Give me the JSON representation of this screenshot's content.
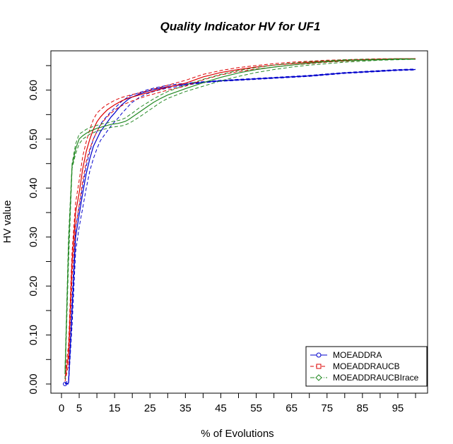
{
  "chart_data": {
    "type": "line",
    "title": "Quality Indicator HV for UF1",
    "xlabel": "% of Evolutions",
    "ylabel": "HV value",
    "xlim": [
      0,
      100
    ],
    "ylim": [
      0,
      0.66
    ],
    "x_ticks": [
      0,
      5,
      10,
      15,
      20,
      25,
      30,
      35,
      40,
      45,
      50,
      55,
      60,
      65,
      70,
      75,
      80,
      85,
      90,
      95,
      100
    ],
    "x_tick_labels": [
      "0",
      "5",
      "",
      "15",
      "",
      "25",
      "",
      "35",
      "",
      "45",
      "",
      "55",
      "",
      "65",
      "",
      "75",
      "",
      "85",
      "",
      "95",
      ""
    ],
    "y_ticks": [
      0,
      0.05,
      0.1,
      0.15,
      0.2,
      0.25,
      0.3,
      0.35,
      0.4,
      0.45,
      0.5,
      0.55,
      0.6,
      0.65
    ],
    "y_tick_labels": [
      "0.00",
      "",
      "0.10",
      "",
      "0.20",
      "",
      "0.30",
      "",
      "0.40",
      "",
      "0.50",
      "",
      "0.60",
      ""
    ],
    "legend_position": "bottom-right",
    "x": [
      1,
      2,
      3,
      4,
      5,
      6,
      7,
      8,
      9,
      10,
      11,
      12,
      13,
      14,
      15,
      16,
      17,
      18,
      19,
      20,
      22,
      24,
      26,
      28,
      30,
      35,
      40,
      45,
      50,
      55,
      60,
      65,
      70,
      75,
      80,
      85,
      90,
      95,
      100
    ],
    "series": [
      {
        "name": "MOEADDRA",
        "color": "#0000cc",
        "marker": "circle",
        "linestyle": "solid",
        "values": [
          0.0,
          0.002,
          0.15,
          0.3,
          0.345,
          0.39,
          0.43,
          0.46,
          0.485,
          0.5,
          0.515,
          0.525,
          0.535,
          0.545,
          0.553,
          0.562,
          0.57,
          0.576,
          0.582,
          0.586,
          0.592,
          0.597,
          0.601,
          0.604,
          0.607,
          0.612,
          0.616,
          0.619,
          0.621,
          0.623,
          0.625,
          0.627,
          0.629,
          0.632,
          0.635,
          0.637,
          0.639,
          0.641,
          0.642
        ],
        "upper": [
          0.0,
          0.01,
          0.17,
          0.32,
          0.36,
          0.405,
          0.445,
          0.475,
          0.5,
          0.515,
          0.53,
          0.54,
          0.548,
          0.556,
          0.563,
          0.57,
          0.577,
          0.582,
          0.587,
          0.59,
          0.595,
          0.6,
          0.604,
          0.607,
          0.61,
          0.614,
          0.617,
          0.62,
          0.622,
          0.624,
          0.626,
          0.628,
          0.63,
          0.633,
          0.636,
          0.638,
          0.64,
          0.642,
          0.643
        ],
        "lower": [
          0.0,
          0.0,
          0.12,
          0.27,
          0.32,
          0.36,
          0.4,
          0.435,
          0.46,
          0.48,
          0.497,
          0.507,
          0.517,
          0.527,
          0.535,
          0.543,
          0.552,
          0.56,
          0.568,
          0.575,
          0.585,
          0.592,
          0.597,
          0.601,
          0.604,
          0.61,
          0.615,
          0.618,
          0.62,
          0.622,
          0.624,
          0.626,
          0.628,
          0.631,
          0.634,
          0.636,
          0.638,
          0.64,
          0.641
        ]
      },
      {
        "name": "MOEADDRAUCB",
        "color": "#dd0000",
        "marker": "square",
        "linestyle": "dashed",
        "values": [
          0.01,
          0.06,
          0.25,
          0.35,
          0.39,
          0.44,
          0.475,
          0.5,
          0.52,
          0.535,
          0.545,
          0.553,
          0.56,
          0.565,
          0.57,
          0.574,
          0.578,
          0.581,
          0.584,
          0.586,
          0.59,
          0.594,
          0.598,
          0.602,
          0.606,
          0.614,
          0.627,
          0.636,
          0.642,
          0.647,
          0.651,
          0.654,
          0.657,
          0.659,
          0.661,
          0.662,
          0.663,
          0.664,
          0.664
        ],
        "upper": [
          0.02,
          0.08,
          0.27,
          0.37,
          0.415,
          0.465,
          0.495,
          0.52,
          0.54,
          0.553,
          0.56,
          0.566,
          0.571,
          0.575,
          0.579,
          0.582,
          0.585,
          0.587,
          0.589,
          0.591,
          0.594,
          0.598,
          0.602,
          0.606,
          0.61,
          0.62,
          0.632,
          0.64,
          0.646,
          0.65,
          0.654,
          0.657,
          0.659,
          0.661,
          0.662,
          0.663,
          0.664,
          0.664,
          0.664
        ],
        "lower": [
          0.005,
          0.04,
          0.22,
          0.32,
          0.365,
          0.415,
          0.455,
          0.48,
          0.5,
          0.515,
          0.528,
          0.538,
          0.546,
          0.553,
          0.559,
          0.564,
          0.568,
          0.572,
          0.575,
          0.578,
          0.583,
          0.588,
          0.592,
          0.596,
          0.6,
          0.608,
          0.621,
          0.631,
          0.638,
          0.643,
          0.647,
          0.651,
          0.654,
          0.657,
          0.659,
          0.661,
          0.662,
          0.663,
          0.664
        ]
      },
      {
        "name": "MOEADDRAUCBIrace",
        "color": "#228822",
        "marker": "diamond",
        "linestyle": "dotdash",
        "values": [
          0.02,
          0.28,
          0.445,
          0.48,
          0.5,
          0.507,
          0.512,
          0.516,
          0.519,
          0.522,
          0.524,
          0.526,
          0.528,
          0.53,
          0.531,
          0.532,
          0.534,
          0.536,
          0.54,
          0.545,
          0.555,
          0.565,
          0.575,
          0.583,
          0.59,
          0.603,
          0.615,
          0.626,
          0.635,
          0.642,
          0.647,
          0.651,
          0.655,
          0.658,
          0.66,
          0.661,
          0.662,
          0.663,
          0.663
        ],
        "upper": [
          0.03,
          0.3,
          0.45,
          0.49,
          0.51,
          0.515,
          0.52,
          0.523,
          0.526,
          0.528,
          0.53,
          0.532,
          0.533,
          0.535,
          0.537,
          0.538,
          0.54,
          0.543,
          0.548,
          0.553,
          0.564,
          0.573,
          0.582,
          0.59,
          0.597,
          0.61,
          0.622,
          0.632,
          0.64,
          0.646,
          0.651,
          0.655,
          0.658,
          0.66,
          0.662,
          0.663,
          0.663,
          0.664,
          0.664
        ],
        "lower": [
          0.01,
          0.25,
          0.44,
          0.47,
          0.49,
          0.5,
          0.505,
          0.51,
          0.513,
          0.516,
          0.518,
          0.52,
          0.522,
          0.524,
          0.525,
          0.526,
          0.527,
          0.529,
          0.532,
          0.536,
          0.545,
          0.555,
          0.565,
          0.575,
          0.583,
          0.597,
          0.608,
          0.619,
          0.628,
          0.636,
          0.642,
          0.647,
          0.651,
          0.654,
          0.657,
          0.659,
          0.661,
          0.662,
          0.663
        ]
      }
    ]
  }
}
